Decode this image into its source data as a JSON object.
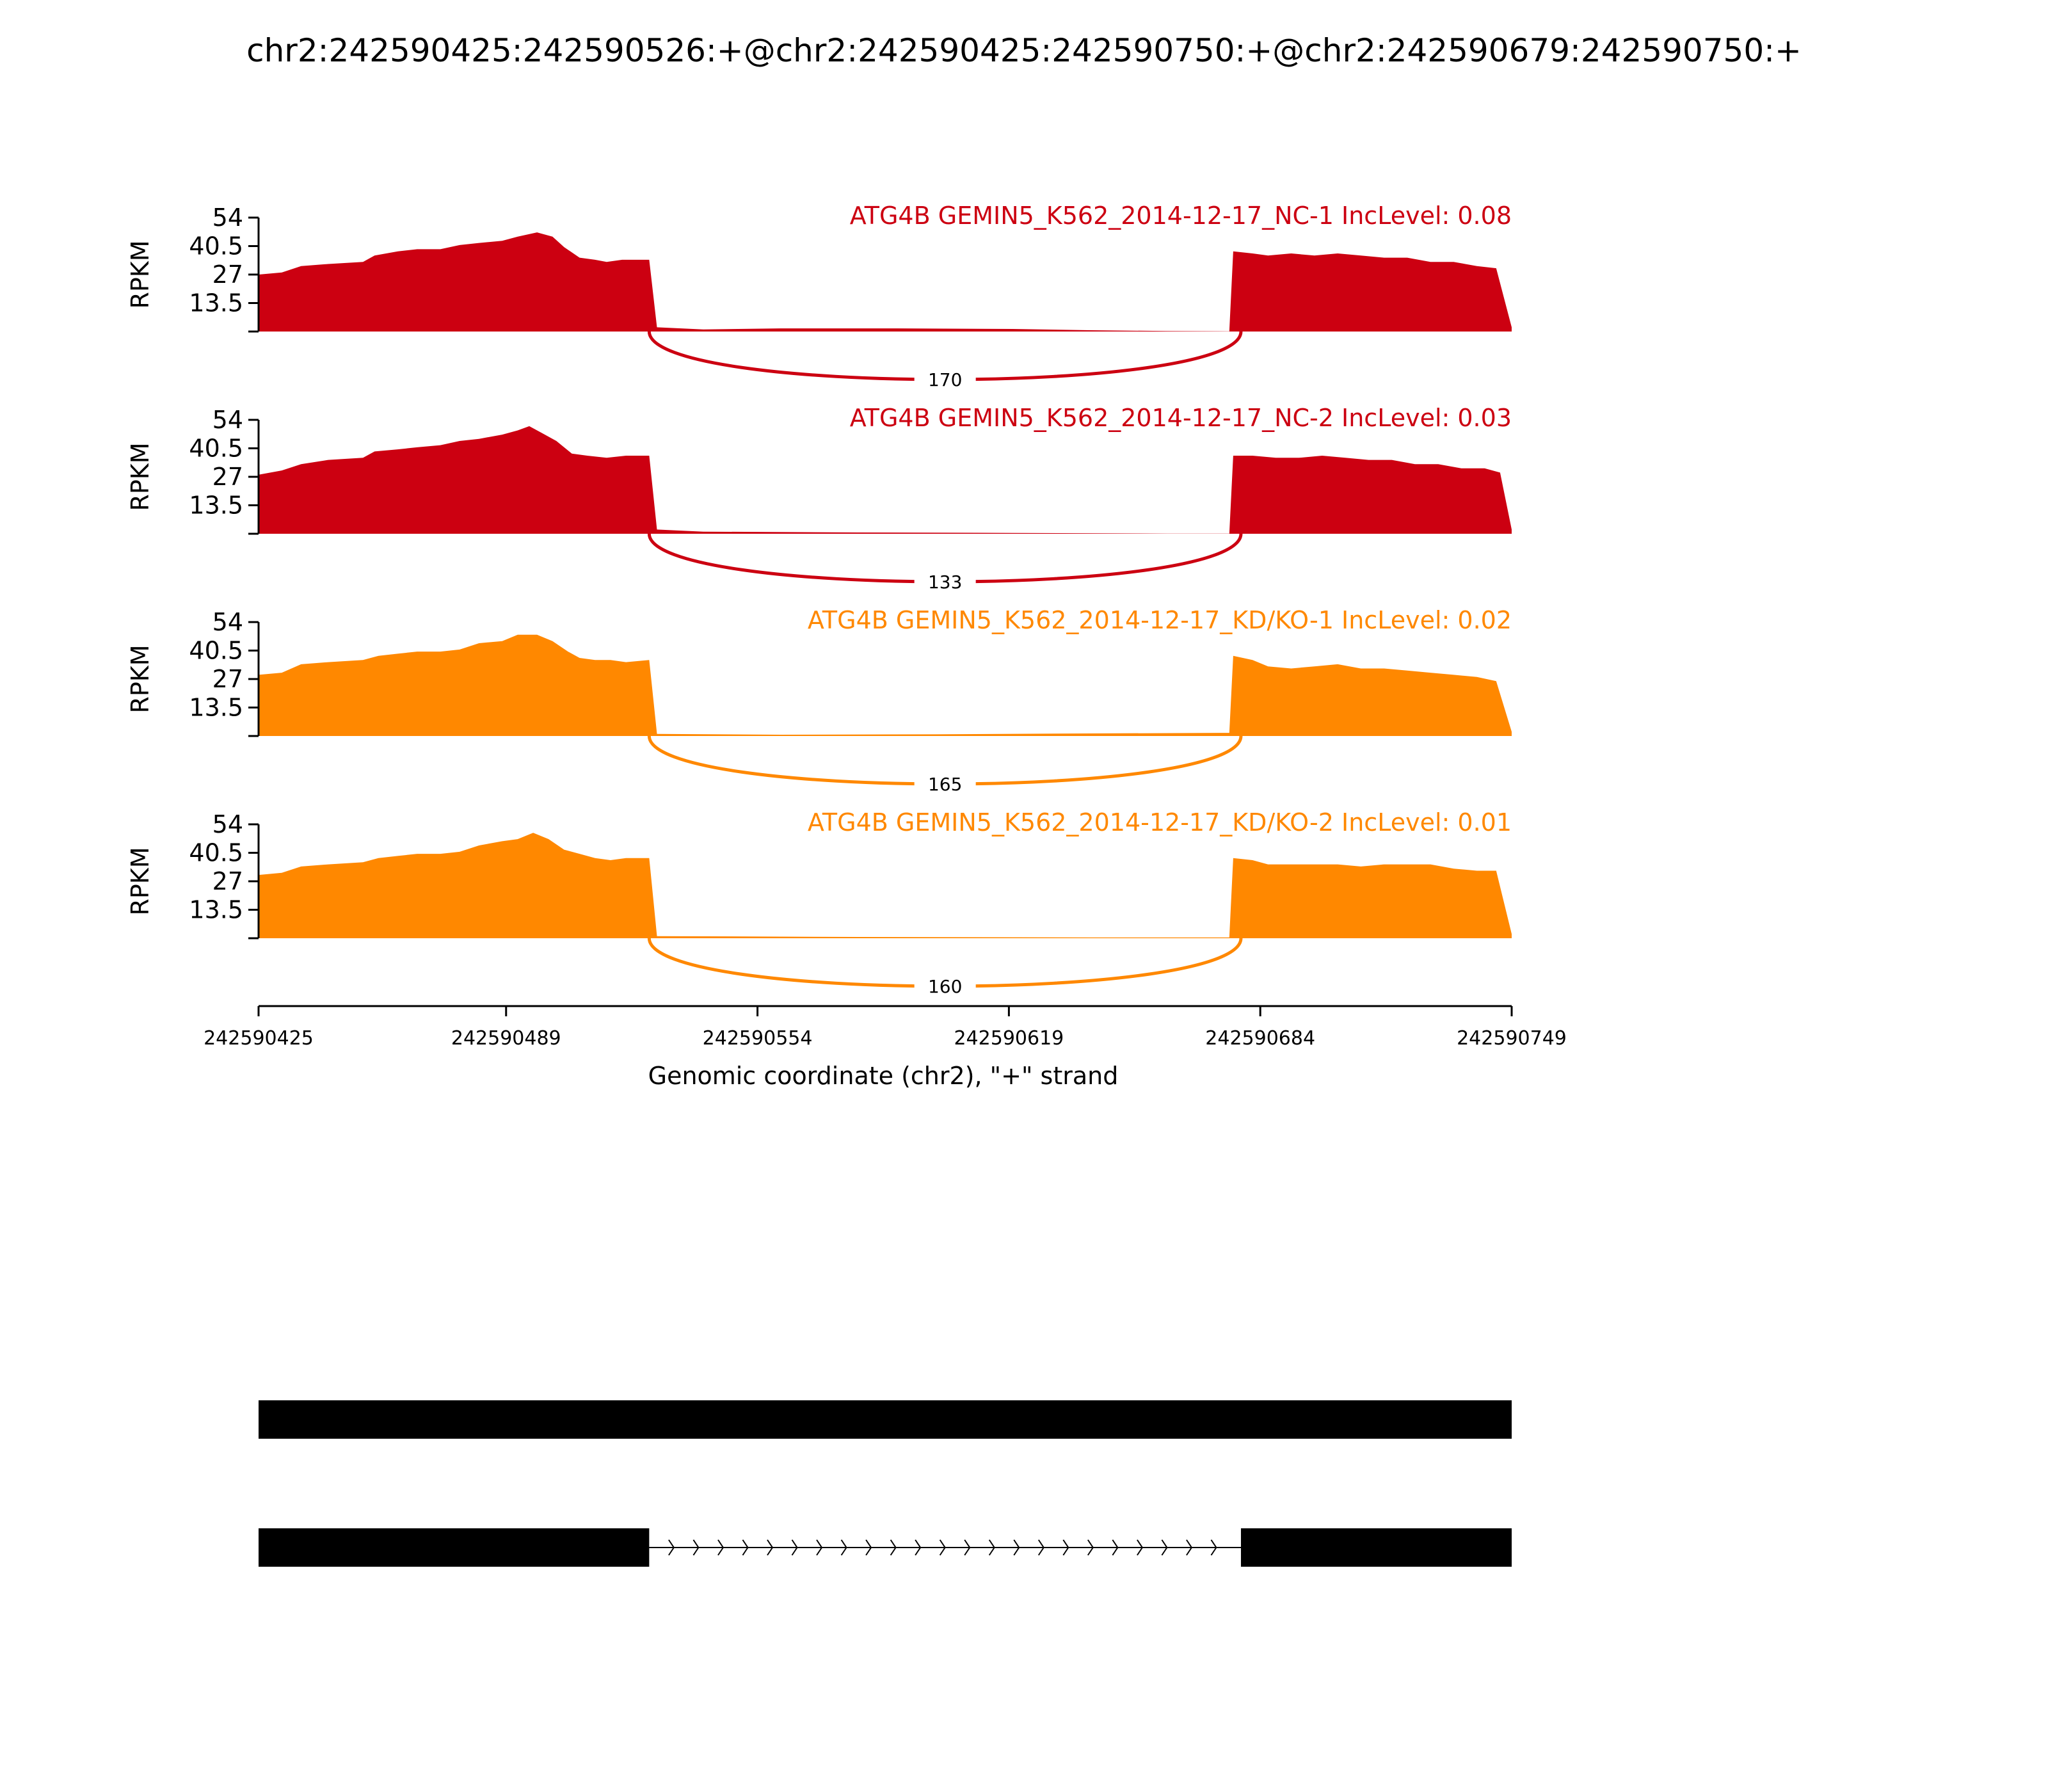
{
  "title": "chr2:242590425:242590526:+@chr2:242590425:242590750:+@chr2:242590679:242590750:+",
  "chart_data": {
    "type": "area",
    "title": "chr2:242590425:242590526:+@chr2:242590425:242590750:+@chr2:242590679:242590750:+",
    "xlabel": "Genomic coordinate (chr2), \"+\" strand",
    "ylabel": "RPKM",
    "xlim": [
      242590425,
      242590749
    ],
    "xticks": [
      242590425,
      242590489,
      242590554,
      242590619,
      242590684,
      242590749
    ],
    "xtick_labels": [
      "242590425",
      "242590489",
      "242590554",
      "242590619",
      "242590684",
      "242590749"
    ],
    "ylim": [
      0,
      54
    ],
    "yticks": [
      13.5,
      27,
      40.5,
      54
    ],
    "ytick_labels": [
      "13.5",
      "27",
      "40.5",
      "54"
    ],
    "legend_position": "none",
    "tracks": [
      {
        "label": "ATG4B GEMIN5_K562_2014-12-17_NC-1 IncLevel: 0.08",
        "color": "#cc0011",
        "junction_reads": "170",
        "junction": [
          242590526,
          242590679
        ],
        "coverage": [
          [
            242590425,
            27
          ],
          [
            242590431,
            28
          ],
          [
            242590436,
            31
          ],
          [
            242590443,
            32
          ],
          [
            242590452,
            33
          ],
          [
            242590455,
            36
          ],
          [
            242590461,
            38
          ],
          [
            242590466,
            39
          ],
          [
            242590472,
            39
          ],
          [
            242590477,
            41
          ],
          [
            242590482,
            42
          ],
          [
            242590488,
            43
          ],
          [
            242590492,
            45
          ],
          [
            242590497,
            47
          ],
          [
            242590501,
            45
          ],
          [
            242590504,
            40
          ],
          [
            242590508,
            35
          ],
          [
            242590512,
            34
          ],
          [
            242590515,
            33
          ],
          [
            242590519,
            34
          ],
          [
            242590524,
            34
          ],
          [
            242590526,
            34
          ],
          [
            242590528,
            2
          ],
          [
            242590540,
            1
          ],
          [
            242590560,
            1.5
          ],
          [
            242590590,
            1.5
          ],
          [
            242590620,
            1.2
          ],
          [
            242590640,
            0.6
          ],
          [
            242590660,
            0.2
          ],
          [
            242590676,
            0.1
          ],
          [
            242590677,
            38
          ],
          [
            242590682,
            37
          ],
          [
            242590686,
            36
          ],
          [
            242590692,
            37
          ],
          [
            242590698,
            36
          ],
          [
            242590704,
            37
          ],
          [
            242590710,
            36
          ],
          [
            242590716,
            35
          ],
          [
            242590722,
            35
          ],
          [
            242590728,
            33
          ],
          [
            242590734,
            33
          ],
          [
            242590740,
            31
          ],
          [
            242590745,
            30
          ],
          [
            242590749,
            2
          ]
        ]
      },
      {
        "label": "ATG4B GEMIN5_K562_2014-12-17_NC-2 IncLevel: 0.03",
        "color": "#cc0011",
        "junction_reads": "133",
        "junction": [
          242590526,
          242590679
        ],
        "coverage": [
          [
            242590425,
            28
          ],
          [
            242590431,
            30
          ],
          [
            242590436,
            33
          ],
          [
            242590443,
            35
          ],
          [
            242590452,
            36
          ],
          [
            242590455,
            39
          ],
          [
            242590461,
            40
          ],
          [
            242590466,
            41
          ],
          [
            242590472,
            42
          ],
          [
            242590477,
            44
          ],
          [
            242590482,
            45
          ],
          [
            242590488,
            47
          ],
          [
            242590492,
            49
          ],
          [
            242590495,
            51
          ],
          [
            242590498,
            48
          ],
          [
            242590502,
            44
          ],
          [
            242590506,
            38
          ],
          [
            242590510,
            37
          ],
          [
            242590515,
            36
          ],
          [
            242590520,
            37
          ],
          [
            242590526,
            37
          ],
          [
            242590528,
            2
          ],
          [
            242590540,
            1
          ],
          [
            242590580,
            0.6
          ],
          [
            242590620,
            0.4
          ],
          [
            242590660,
            0.1
          ],
          [
            242590676,
            0.1
          ],
          [
            242590677,
            37
          ],
          [
            242590682,
            37
          ],
          [
            242590688,
            36
          ],
          [
            242590694,
            36
          ],
          [
            242590700,
            37
          ],
          [
            242590706,
            36
          ],
          [
            242590712,
            35
          ],
          [
            242590718,
            35
          ],
          [
            242590724,
            33
          ],
          [
            242590730,
            33
          ],
          [
            242590736,
            31
          ],
          [
            242590742,
            31
          ],
          [
            242590746,
            29
          ],
          [
            242590749,
            2
          ]
        ]
      },
      {
        "label": "ATG4B GEMIN5_K562_2014-12-17_KD/KO-1 IncLevel: 0.02",
        "color": "#ff8800",
        "junction_reads": "165",
        "junction": [
          242590526,
          242590679
        ],
        "coverage": [
          [
            242590425,
            29
          ],
          [
            242590431,
            30
          ],
          [
            242590436,
            34
          ],
          [
            242590443,
            35
          ],
          [
            242590452,
            36
          ],
          [
            242590456,
            38
          ],
          [
            242590461,
            39
          ],
          [
            242590466,
            40
          ],
          [
            242590472,
            40
          ],
          [
            242590477,
            41
          ],
          [
            242590482,
            44
          ],
          [
            242590488,
            45
          ],
          [
            242590492,
            48
          ],
          [
            242590497,
            48
          ],
          [
            242590501,
            45
          ],
          [
            242590505,
            40
          ],
          [
            242590508,
            37
          ],
          [
            242590512,
            36
          ],
          [
            242590516,
            36
          ],
          [
            242590520,
            35
          ],
          [
            242590526,
            36
          ],
          [
            242590528,
            1
          ],
          [
            242590560,
            0.6
          ],
          [
            242590600,
            0.8
          ],
          [
            242590640,
            1.2
          ],
          [
            242590676,
            1.5
          ],
          [
            242590677,
            38
          ],
          [
            242590682,
            36
          ],
          [
            242590686,
            33
          ],
          [
            242590692,
            32
          ],
          [
            242590698,
            33
          ],
          [
            242590704,
            34
          ],
          [
            242590710,
            32
          ],
          [
            242590716,
            32
          ],
          [
            242590722,
            31
          ],
          [
            242590728,
            30
          ],
          [
            242590734,
            29
          ],
          [
            242590740,
            28
          ],
          [
            242590745,
            26
          ],
          [
            242590749,
            2
          ]
        ]
      },
      {
        "label": "ATG4B GEMIN5_K562_2014-12-17_KD/KO-2 IncLevel: 0.01",
        "color": "#ff8800",
        "junction_reads": "160",
        "junction": [
          242590526,
          242590679
        ],
        "coverage": [
          [
            242590425,
            30
          ],
          [
            242590431,
            31
          ],
          [
            242590436,
            34
          ],
          [
            242590443,
            35
          ],
          [
            242590452,
            36
          ],
          [
            242590456,
            38
          ],
          [
            242590461,
            39
          ],
          [
            242590466,
            40
          ],
          [
            242590472,
            40
          ],
          [
            242590477,
            41
          ],
          [
            242590482,
            44
          ],
          [
            242590488,
            46
          ],
          [
            242590492,
            47
          ],
          [
            242590496,
            50
          ],
          [
            242590500,
            47
          ],
          [
            242590504,
            42
          ],
          [
            242590508,
            40
          ],
          [
            242590512,
            38
          ],
          [
            242590516,
            37
          ],
          [
            242590520,
            38
          ],
          [
            242590526,
            38
          ],
          [
            242590528,
            1
          ],
          [
            242590580,
            0.6
          ],
          [
            242590640,
            0.4
          ],
          [
            242590676,
            0.4
          ],
          [
            242590677,
            38
          ],
          [
            242590682,
            37
          ],
          [
            242590686,
            35
          ],
          [
            242590692,
            35
          ],
          [
            242590698,
            35
          ],
          [
            242590704,
            35
          ],
          [
            242590710,
            34
          ],
          [
            242590716,
            35
          ],
          [
            242590722,
            35
          ],
          [
            242590728,
            35
          ],
          [
            242590734,
            33
          ],
          [
            242590740,
            32
          ],
          [
            242590745,
            32
          ],
          [
            242590749,
            2
          ]
        ]
      }
    ],
    "isoforms": [
      {
        "exons": [
          [
            242590425,
            242590749
          ]
        ]
      },
      {
        "exons": [
          [
            242590425,
            242590526
          ],
          [
            242590679,
            242590749
          ]
        ]
      }
    ]
  }
}
